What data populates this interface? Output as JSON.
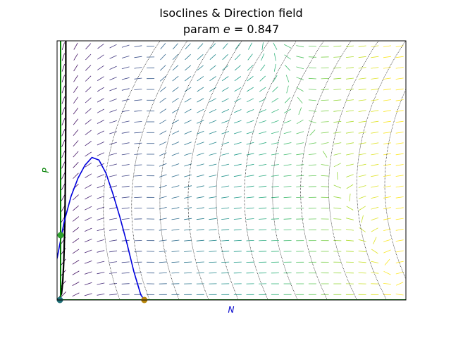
{
  "chart_data": {
    "type": "line",
    "title": "Isoclines & Direction field",
    "subtitle_prefix": "param ",
    "subtitle_var": "e",
    "subtitle_suffix": " = 0.847",
    "xlabel": "N",
    "ylabel": "P",
    "xlim": [
      0,
      1
    ],
    "ylim": [
      0,
      1
    ],
    "grid": false,
    "legend": "none",
    "colors": {
      "xlabel": "#0000cc",
      "ylabel": "#008000",
      "n_isocline": "#0000dd",
      "p_isocline": "#007a00",
      "trajectory": "#000000",
      "equilibrium_green": "#2ca02c",
      "equilibrium_teal": "#1f6f77",
      "equilibrium_orange": "#b8860b",
      "field_colormap": "viridis"
    },
    "series": [
      {
        "x": [
          0.0,
          0.02,
          0.04,
          0.06,
          0.08,
          0.1,
          0.12,
          0.14,
          0.16,
          0.18,
          0.2,
          0.22,
          0.24,
          0.25
        ],
        "y": [
          0.16,
          0.3,
          0.4,
          0.47,
          0.52,
          0.55,
          0.54,
          0.49,
          0.41,
          0.32,
          0.22,
          0.11,
          0.02,
          0.0
        ]
      },
      {
        "x": [
          0.01,
          0.01
        ],
        "y": [
          0.0,
          1.0
        ]
      },
      {
        "x": [
          0.0,
          1.0
        ],
        "y": [
          0.0,
          0.0
        ]
      }
    ],
    "equilibria": [
      {
        "x": 0.01,
        "y": 0.25
      },
      {
        "x": 0.008,
        "y": 0.0
      },
      {
        "x": 0.25,
        "y": 0.0
      }
    ]
  }
}
